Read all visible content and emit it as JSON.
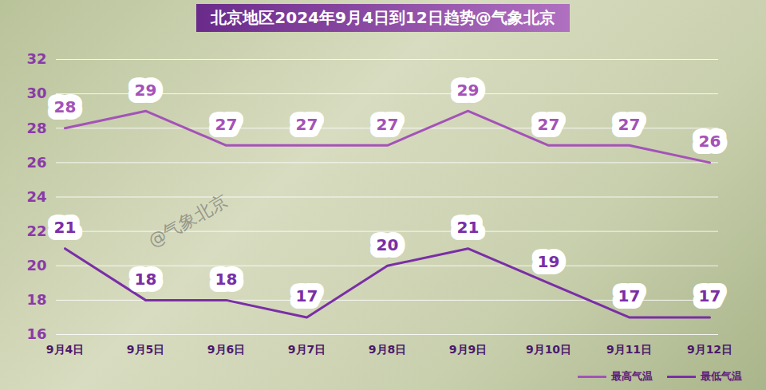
{
  "chart_data": {
    "type": "line",
    "title": "北京地区2024年9月4日到12日趋势@气象北京",
    "categories": [
      "9月4日",
      "9月5日",
      "9月6日",
      "9月7日",
      "9月8日",
      "9月9日",
      "9月10日",
      "9月11日",
      "9月12日"
    ],
    "series": [
      {
        "name": "最高气温",
        "color": "#a452b8",
        "values": [
          28,
          29,
          27,
          27,
          27,
          29,
          27,
          27,
          26
        ]
      },
      {
        "name": "最低气温",
        "color": "#7a2ea6",
        "values": [
          21,
          18,
          18,
          17,
          20,
          21,
          19,
          17,
          17
        ]
      }
    ],
    "ylim": [
      16,
      32
    ],
    "yticks": [
      16,
      18,
      20,
      22,
      24,
      26,
      28,
      30,
      32
    ],
    "grid": true,
    "data_labels": true,
    "legend": "bottom-right",
    "annotations": [
      "@气象北京"
    ]
  }
}
